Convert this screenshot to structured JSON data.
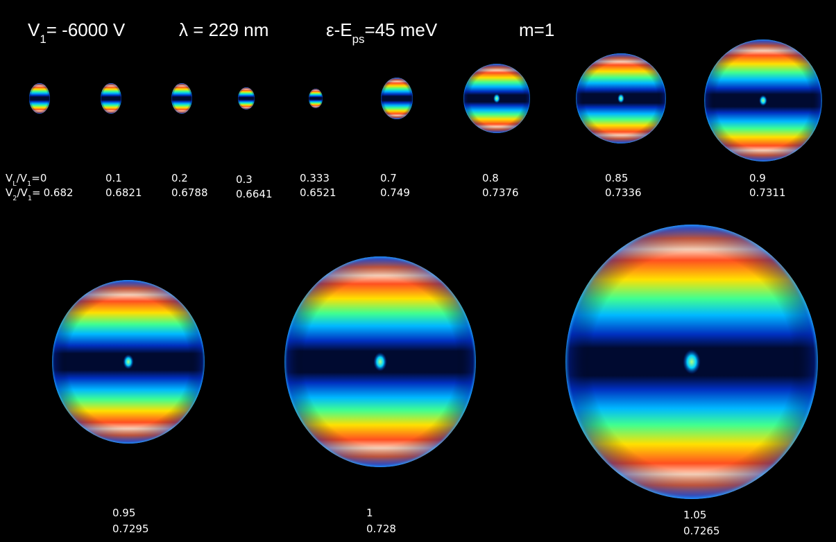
{
  "header": [
    {
      "parts": [
        "V",
        "1",
        "= -6000 V"
      ]
    },
    {
      "parts": [
        "λ = 229 nm"
      ]
    },
    {
      "parts": [
        "ε-E",
        "ps",
        "=45 meV"
      ]
    },
    {
      "parts": [
        "m=1"
      ]
    }
  ],
  "row_labels": {
    "vl": {
      "parts": [
        "V",
        "L",
        "/V",
        "1",
        "="
      ]
    },
    "v2": {
      "parts": [
        "V",
        "2",
        "/V",
        "1",
        "="
      ]
    }
  },
  "panels": [
    {
      "vl": "0",
      "v2": "0.682"
    },
    {
      "vl": "0.1",
      "v2": "0.6821"
    },
    {
      "vl": "0.2",
      "v2": "0.6788"
    },
    {
      "vl": "0.3",
      "v2": "0.6641"
    },
    {
      "vl": "0.333",
      "v2": "0.6521"
    },
    {
      "vl": "0.7",
      "v2": "0.749"
    },
    {
      "vl": "0.8",
      "v2": "0.7376"
    },
    {
      "vl": "0.85",
      "v2": "0.7336"
    },
    {
      "vl": "0.9",
      "v2": "0.7311"
    },
    {
      "vl": "0.95",
      "v2": "0.7295"
    },
    {
      "vl": "1",
      "v2": "0.728"
    },
    {
      "vl": "1.05",
      "v2": "0.7265"
    }
  ]
}
